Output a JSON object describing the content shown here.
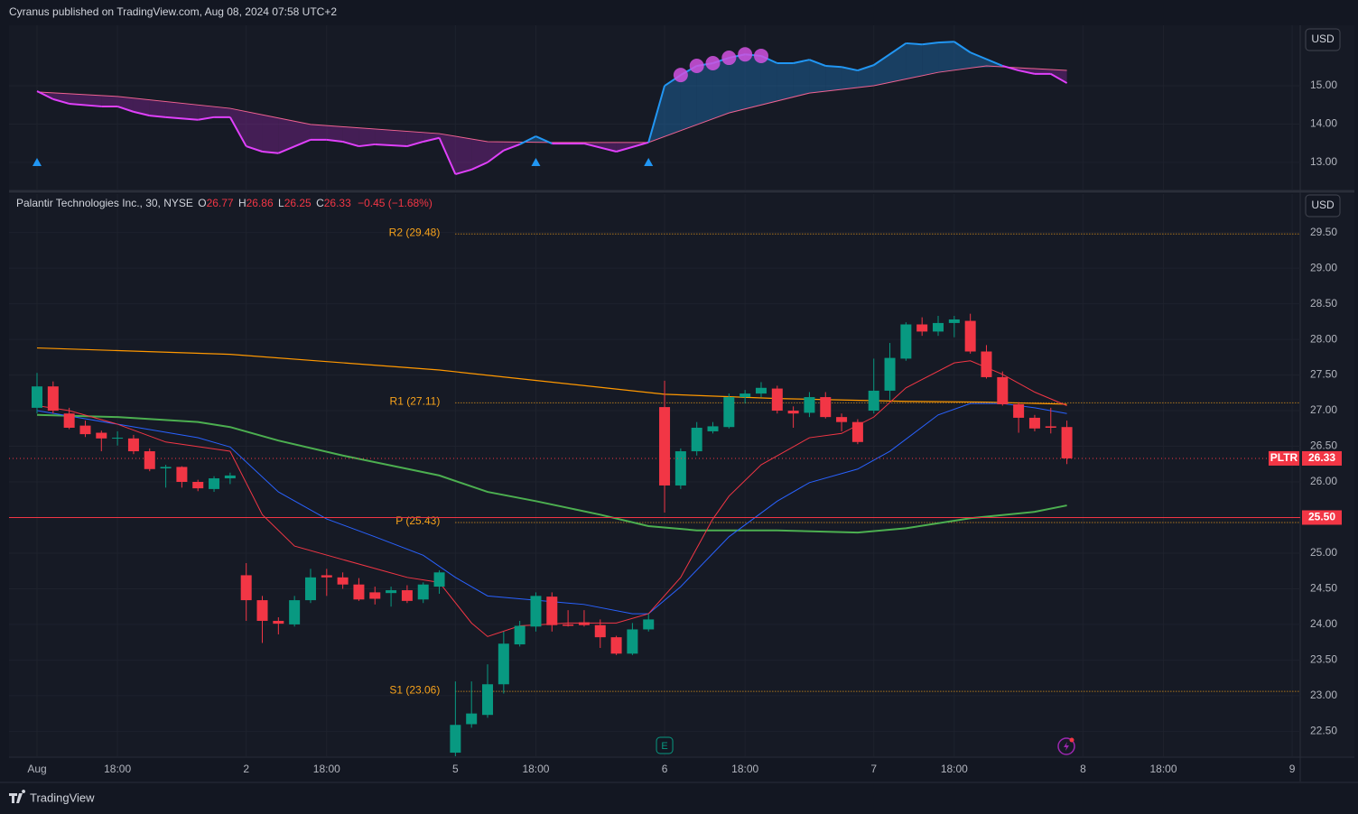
{
  "header": {
    "published": "Cyranus published on TradingView.com, Aug 08, 2024 07:58 UTC+2",
    "brand": "TradingView"
  },
  "chart_data": [
    {
      "type": "line",
      "currency": "USD",
      "xlim": [
        -1.74,
        78.5
      ],
      "ylim": [
        12.29,
        16.58
      ],
      "yticks": [
        {
          "value": 13,
          "label": "13.00"
        },
        {
          "value": 14,
          "label": "14.00"
        },
        {
          "value": 15,
          "label": "15.00"
        }
      ],
      "fill_below": "rgba(156,39,176,0.35)",
      "fill_above": "rgba(33,150,243,0.3)",
      "series": [
        {
          "color": "#e040fb",
          "color_above": "#2196f3",
          "x": [
            0,
            1,
            2,
            4,
            5,
            6,
            7,
            8,
            10,
            11,
            12,
            13,
            14,
            15,
            17,
            18,
            19,
            20,
            21,
            23,
            24,
            25,
            26,
            27,
            28,
            29,
            30,
            31,
            32,
            34,
            36,
            38,
            39,
            40,
            41,
            42,
            43,
            44,
            45,
            46,
            47,
            48,
            49,
            50,
            51,
            52,
            54,
            55,
            56,
            57,
            58,
            60,
            61,
            62,
            63,
            64
          ],
          "values": [
            14.86,
            14.65,
            14.53,
            14.46,
            14.46,
            14.32,
            14.22,
            14.18,
            14.11,
            14.18,
            14.18,
            13.42,
            13.28,
            13.24,
            13.59,
            13.59,
            13.54,
            13.42,
            13.47,
            13.42,
            13.54,
            13.64,
            12.69,
            12.81,
            13.0,
            13.31,
            13.47,
            13.68,
            13.49,
            13.49,
            13.28,
            13.52,
            15.0,
            15.28,
            15.52,
            15.59,
            15.73,
            15.82,
            15.78,
            15.59,
            15.59,
            15.68,
            15.52,
            15.49,
            15.4,
            15.54,
            16.11,
            16.08,
            16.13,
            16.15,
            15.87,
            15.52,
            15.4,
            15.31,
            15.31,
            15.07
          ]
        },
        {
          "color": "#f06292",
          "x": [
            0,
            5,
            12,
            17,
            25,
            28,
            32,
            38,
            43,
            48,
            52,
            56,
            59,
            61,
            64
          ],
          "values": [
            14.84,
            14.72,
            14.41,
            13.99,
            13.75,
            13.54,
            13.52,
            13.52,
            14.29,
            14.81,
            15.0,
            15.35,
            15.52,
            15.47,
            15.4
          ]
        }
      ],
      "markers": {
        "triangle_x": [
          0,
          31,
          38
        ],
        "triangle_color": "#2196f3",
        "circle_x": [
          40,
          41,
          42,
          43,
          44,
          45
        ],
        "circle_color": "#d152e0"
      }
    },
    {
      "type": "candlestick",
      "currency": "USD",
      "symbol": "Palantir Technologies Inc., 30, NYSE",
      "ohlc_labels": [
        "O",
        "H",
        "L",
        "C"
      ],
      "change": "−0.45 (−1.68%)",
      "xlim": [
        -1.74,
        78.5
      ],
      "ylim": [
        22.15,
        30.04
      ],
      "xticks": [
        {
          "value": 0,
          "label": "Aug"
        },
        {
          "value": 5,
          "label": "18:00"
        },
        {
          "value": 13,
          "label": "2"
        },
        {
          "value": 18,
          "label": "18:00"
        },
        {
          "value": 26,
          "label": "5"
        },
        {
          "value": 31,
          "label": "18:00"
        },
        {
          "value": 39,
          "label": "6"
        },
        {
          "value": 44,
          "label": "18:00"
        },
        {
          "value": 52,
          "label": "7"
        },
        {
          "value": 57,
          "label": "18:00"
        },
        {
          "value": 65,
          "label": "8"
        },
        {
          "value": 70,
          "label": "18:00"
        },
        {
          "value": 78,
          "label": "9"
        }
      ],
      "yticks": [
        {
          "value": 22.5,
          "label": "22.50"
        },
        {
          "value": 23,
          "label": "23.00"
        },
        {
          "value": 23.5,
          "label": "23.50"
        },
        {
          "value": 24,
          "label": "24.00"
        },
        {
          "value": 24.5,
          "label": "24.50"
        },
        {
          "value": 25,
          "label": "25.00"
        },
        {
          "value": 25.5,
          "label": "25.50"
        },
        {
          "value": 26,
          "label": "26.00"
        },
        {
          "value": 26.5,
          "label": "26.50"
        },
        {
          "value": 27,
          "label": "27.00"
        },
        {
          "value": 27.5,
          "label": "27.50"
        },
        {
          "value": 28,
          "label": "28.00"
        },
        {
          "value": 28.5,
          "label": "28.50"
        },
        {
          "value": 29,
          "label": "29.00"
        },
        {
          "value": 29.5,
          "label": "29.50"
        }
      ],
      "up_color": "#089981",
      "down_color": "#f23645",
      "open": [
        27.04,
        27.34,
        26.96,
        26.79,
        26.69,
        26.61,
        26.61,
        26.43,
        26.19,
        26.21,
        26.0,
        25.9,
        26.05,
        24.69,
        24.34,
        24.05,
        24.0,
        24.34,
        24.69,
        24.66,
        24.56,
        24.45,
        24.44,
        24.48,
        24.35,
        24.53,
        22.2,
        22.6,
        22.73,
        23.16,
        23.72,
        23.97,
        24.39,
        24.0,
        24.03,
        23.99,
        23.82,
        23.59,
        23.93,
        27.05,
        25.95,
        26.43,
        26.71,
        26.77,
        27.19,
        27.24,
        27.31,
        27.0,
        26.97,
        27.19,
        26.91,
        26.84,
        27.0,
        27.28,
        27.73,
        28.21,
        28.11,
        28.23,
        28.26,
        27.83,
        27.47,
        27.09,
        26.9,
        26.78,
        26.77
      ],
      "high": [
        27.53,
        27.41,
        27.04,
        26.86,
        26.72,
        26.71,
        26.66,
        26.47,
        26.24,
        26.22,
        26.03,
        26.08,
        26.13,
        24.86,
        24.4,
        24.1,
        24.4,
        24.78,
        24.78,
        24.73,
        24.65,
        24.53,
        24.53,
        24.55,
        24.59,
        24.76,
        23.2,
        23.2,
        23.44,
        23.9,
        24.05,
        24.45,
        24.45,
        24.2,
        24.2,
        24.07,
        23.84,
        24.02,
        24.15,
        27.42,
        26.47,
        26.84,
        26.84,
        27.24,
        27.29,
        27.4,
        27.35,
        27.06,
        27.26,
        27.26,
        26.96,
        26.88,
        27.73,
        27.95,
        28.24,
        28.31,
        28.33,
        28.33,
        28.36,
        27.92,
        27.55,
        27.12,
        26.94,
        27.04,
        26.86
      ],
      "low": [
        26.96,
        26.96,
        26.74,
        26.63,
        26.43,
        26.51,
        26.39,
        26.15,
        25.92,
        25.92,
        25.87,
        25.86,
        25.97,
        24.05,
        23.74,
        23.86,
        23.97,
        24.3,
        24.4,
        24.5,
        24.33,
        24.28,
        24.25,
        24.3,
        24.3,
        24.43,
        22.1,
        22.55,
        22.69,
        23.03,
        23.69,
        23.9,
        23.9,
        23.97,
        23.97,
        23.67,
        23.57,
        23.57,
        23.9,
        25.57,
        25.9,
        26.37,
        26.68,
        26.75,
        27.1,
        27.19,
        26.96,
        26.76,
        26.91,
        26.89,
        26.71,
        26.53,
        26.96,
        27.15,
        27.7,
        28.05,
        28.05,
        28.03,
        27.8,
        27.45,
        27.07,
        26.69,
        26.71,
        26.68,
        26.25
      ],
      "close": [
        27.34,
        27.0,
        26.76,
        26.67,
        26.61,
        26.62,
        26.43,
        26.18,
        26.21,
        26.0,
        25.91,
        26.05,
        26.09,
        24.34,
        24.05,
        24.01,
        24.34,
        24.66,
        24.66,
        24.56,
        24.35,
        24.36,
        24.48,
        24.33,
        24.56,
        24.73,
        22.59,
        22.75,
        23.16,
        23.73,
        23.98,
        24.4,
        23.99,
        23.98,
        23.99,
        23.82,
        23.59,
        23.93,
        24.07,
        25.95,
        26.43,
        26.76,
        26.78,
        27.19,
        27.24,
        27.32,
        27.0,
        26.96,
        27.19,
        26.91,
        26.84,
        26.56,
        27.28,
        27.74,
        28.21,
        28.11,
        28.23,
        28.28,
        27.83,
        27.47,
        27.09,
        26.9,
        26.75,
        26.76,
        26.33
      ],
      "lines": [
        {
          "color": "#ff9800",
          "x": [
            0,
            12,
            25,
            39,
            46,
            54,
            59,
            64
          ],
          "values": [
            27.88,
            27.79,
            27.57,
            27.23,
            27.17,
            27.13,
            27.12,
            27.09
          ]
        },
        {
          "color": "#4caf50",
          "x": [
            0,
            5,
            10,
            12,
            15,
            19,
            25,
            28,
            31,
            35,
            38,
            41,
            46,
            51,
            54,
            58,
            62,
            64
          ],
          "values": [
            26.94,
            26.91,
            26.84,
            26.77,
            26.58,
            26.37,
            26.09,
            25.86,
            25.73,
            25.54,
            25.38,
            25.32,
            25.32,
            25.29,
            25.35,
            25.49,
            25.58,
            25.67
          ]
        },
        {
          "color": "#2962ff",
          "x": [
            0,
            5,
            10,
            12,
            15,
            18,
            21,
            24,
            26,
            28,
            31,
            34,
            37,
            38,
            40,
            43,
            46,
            48,
            51,
            53,
            56,
            58,
            60,
            62,
            64
          ],
          "values": [
            27.0,
            26.81,
            26.62,
            26.49,
            25.86,
            25.48,
            25.23,
            24.97,
            24.66,
            24.4,
            24.34,
            24.28,
            24.15,
            24.15,
            24.53,
            25.23,
            25.73,
            25.99,
            26.18,
            26.43,
            26.94,
            27.1,
            27.1,
            27.04,
            26.96
          ]
        },
        {
          "color": "#f23645",
          "x": [
            0,
            2,
            5,
            8,
            12,
            14,
            16,
            19,
            23,
            25,
            27,
            28,
            30,
            33,
            36,
            38,
            40,
            42,
            43,
            45,
            48,
            50,
            52,
            54,
            57,
            58,
            60,
            62,
            64
          ],
          "values": [
            27.07,
            27.0,
            26.81,
            26.56,
            26.43,
            25.54,
            25.1,
            24.91,
            24.66,
            24.59,
            24.02,
            23.83,
            23.98,
            24.02,
            24.02,
            24.15,
            24.66,
            25.48,
            25.8,
            26.24,
            26.62,
            26.68,
            26.91,
            27.32,
            27.67,
            27.7,
            27.51,
            27.26,
            27.07
          ]
        }
      ],
      "level_color": "#f7a21b",
      "level_start": 26,
      "levels": [
        {
          "value": 29.48,
          "label": "R2 (29.48)"
        },
        {
          "value": 27.11,
          "label": "R1 (27.11)"
        },
        {
          "value": 25.43,
          "label": "P (25.43)"
        },
        {
          "value": 23.06,
          "label": "S1 (23.06)"
        }
      ],
      "price_lines": [
        {
          "value": 25.5,
          "label": "25.50",
          "style": "solid",
          "color": "#f23645"
        },
        {
          "value": 26.33,
          "label": "26.33",
          "symbol": "PLTR",
          "style": "dotted",
          "color": "#f23645"
        }
      ],
      "events": [
        {
          "x": 39,
          "label": "E"
        }
      ]
    }
  ]
}
